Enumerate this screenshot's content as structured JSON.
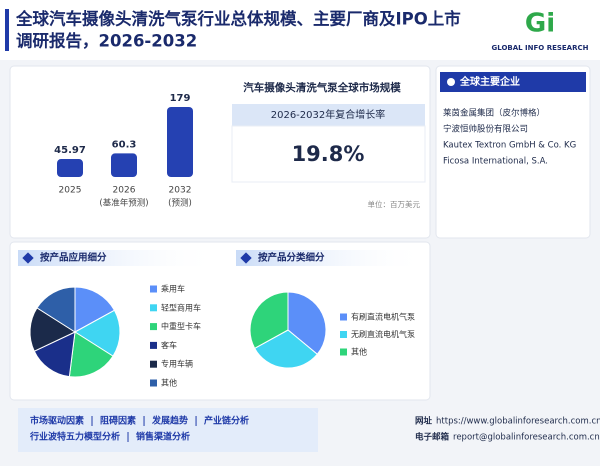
{
  "header": {
    "title_lines": [
      "全球汽车摄像头清洗气泵行业总体规模、主要厂商及IPO上市",
      "调研报告，2026-2032"
    ],
    "logo_mark": "Gi",
    "logo_text": "GLOBAL INFO RESEARCH"
  },
  "market_panel": {
    "title": "汽车摄像头清洗气泵全球市场规模",
    "cagr_label": "2026-2032年复合增长率",
    "cagr": "19.8%",
    "unit": "单位：百万美元"
  },
  "companies": {
    "title": "全球主要企业",
    "items": [
      "莱茵金属集团（皮尔博格）",
      "宁波恒帅股份有限公司",
      "Kautex Textron GmbH & Co. KG",
      "Ficosa International, S.A."
    ]
  },
  "chart_data": [
    {
      "type": "bar",
      "categories": [
        "2025",
        "2026",
        "2032"
      ],
      "category_notes": [
        null,
        "(基准年预测)",
        "(预测)"
      ],
      "values": [
        45.97,
        60.3,
        179
      ],
      "color": "#2541b2"
    },
    {
      "type": "pie",
      "title": "按产品应用细分",
      "categories": [
        "乘用车",
        "轻型商用车",
        "中重型卡车",
        "客车",
        "专用车辆",
        "其他"
      ],
      "values": [
        17,
        17,
        18,
        16,
        16,
        16
      ],
      "colors": [
        "#5b8ff9",
        "#3fd5f2",
        "#2ed47a",
        "#1a2f8a",
        "#1b2a4a",
        "#2e5fa8"
      ]
    },
    {
      "type": "pie",
      "title": "按产品分类细分",
      "categories": [
        "有刷直流电机气泵",
        "无刷直流电机气泵",
        "其他"
      ],
      "values": [
        36,
        31,
        33
      ],
      "colors": [
        "#5b8ff9",
        "#3fd5f2",
        "#2ed47a"
      ]
    }
  ],
  "footer": {
    "links": [
      [
        "市场驱动因素",
        "阻碍因素",
        "发展趋势",
        "产业链分析"
      ],
      [
        "行业波特五力模型分析",
        "销售渠道分析"
      ]
    ],
    "website_label": "网址",
    "website": "https://www.globalinforesearch.com.cn",
    "email_label": "电子邮箱",
    "email": "report@globalinforesearch.com.cn"
  }
}
